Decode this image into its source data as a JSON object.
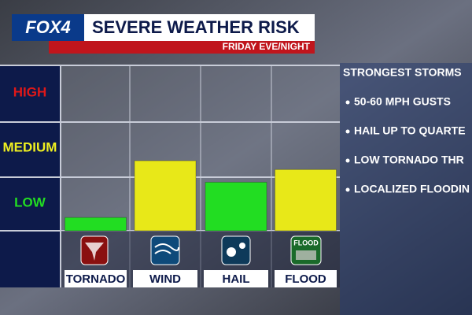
{
  "header": {
    "logo": "FOX4",
    "title": "SEVERE WEATHER RISK",
    "subtitle": "FRIDAY EVE/NIGHT"
  },
  "chart_data": {
    "type": "bar",
    "categories": [
      "TORNADO",
      "WIND",
      "HAIL",
      "FLOOD"
    ],
    "values": [
      0.24,
      1.27,
      0.88,
      1.11
    ],
    "colors": [
      "#22dd22",
      "#e8e818",
      "#22dd22",
      "#e8e818"
    ],
    "ylim": [
      0,
      3
    ],
    "yticks": [
      {
        "value": 0.5,
        "label": "LOW"
      },
      {
        "value": 1.5,
        "label": "MEDIUM"
      },
      {
        "value": 2.5,
        "label": "HIGH"
      }
    ],
    "ytick_colors": [
      "#22dd22",
      "#f0f020",
      "#e01818"
    ],
    "flood_icon_text": "FLOOD"
  },
  "notes": {
    "title": "STRONGEST STORMS",
    "items": [
      "50-60 MPH GUSTS",
      "HAIL UP TO QUARTE",
      "LOW TORNADO THR",
      "LOCALIZED FLOODIN"
    ]
  }
}
